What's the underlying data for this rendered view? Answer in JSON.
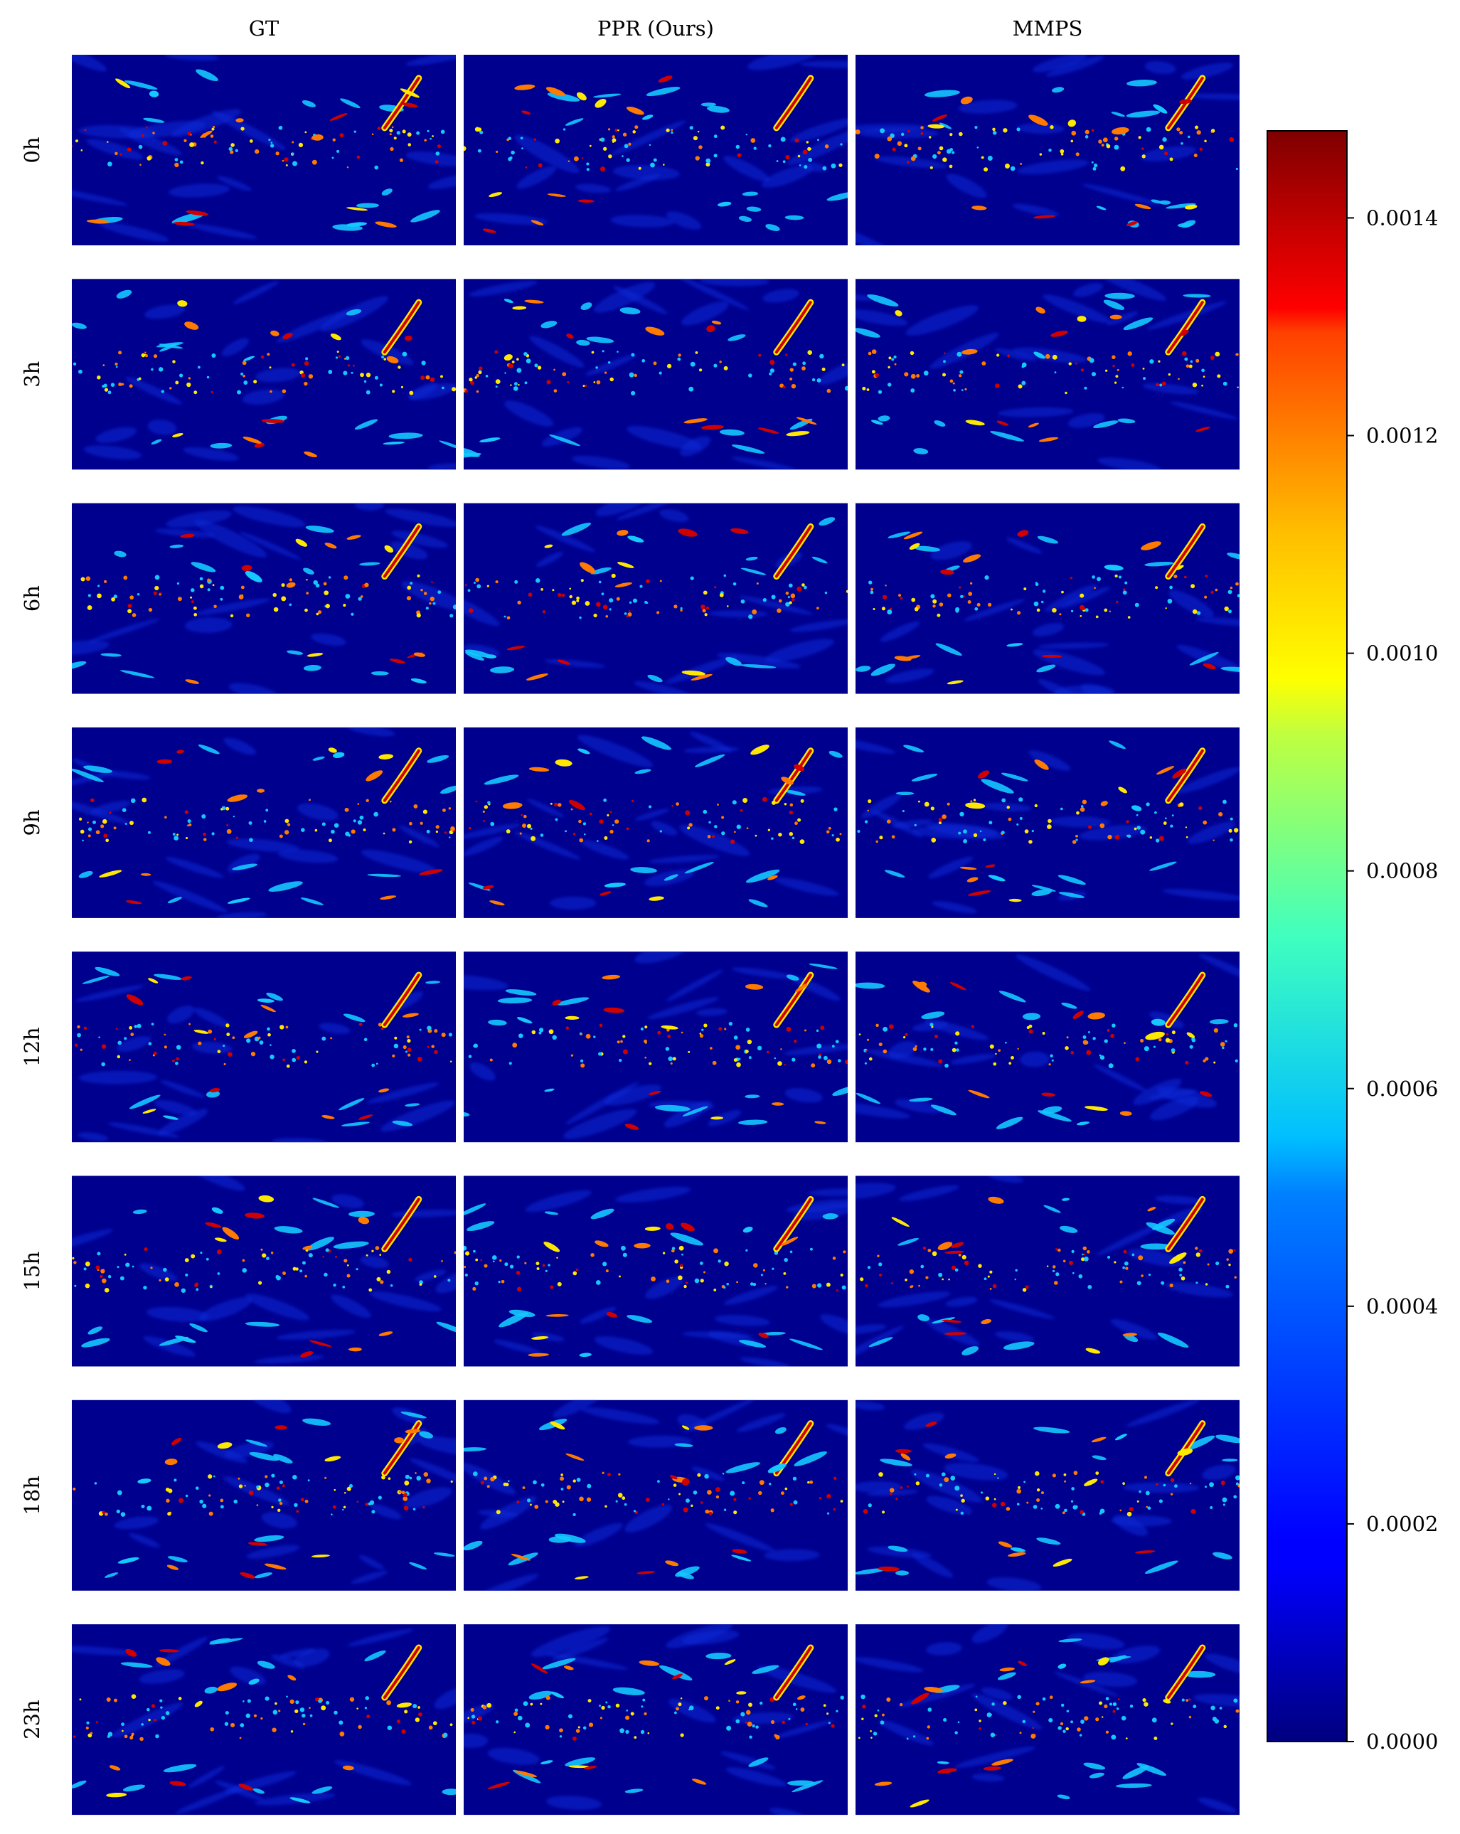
{
  "chart_data": {
    "type": "heatmap",
    "columns": [
      "GT",
      "PPR (Ours)",
      "MMPS"
    ],
    "rows": [
      "0h",
      "3h",
      "6h",
      "9h",
      "12h",
      "15h",
      "18h",
      "23h"
    ],
    "colorbar": {
      "colormap": "jet",
      "range": [
        0.0,
        0.00148
      ],
      "ticks": [
        0.0,
        0.0002,
        0.0004,
        0.0006,
        0.0008,
        0.001,
        0.0012,
        0.0014
      ],
      "tick_labels": [
        "0.0000",
        "0.0002",
        "0.0004",
        "0.0006",
        "0.0008",
        "0.0010",
        "0.0012",
        "0.0014"
      ]
    },
    "colors": {
      "background": "#00008f",
      "low": "#0a2cd8",
      "mid": "#15c8ff",
      "high_yellow": "#ffe800",
      "high_orange": "#ff7a00",
      "peak": "#d00000"
    }
  }
}
